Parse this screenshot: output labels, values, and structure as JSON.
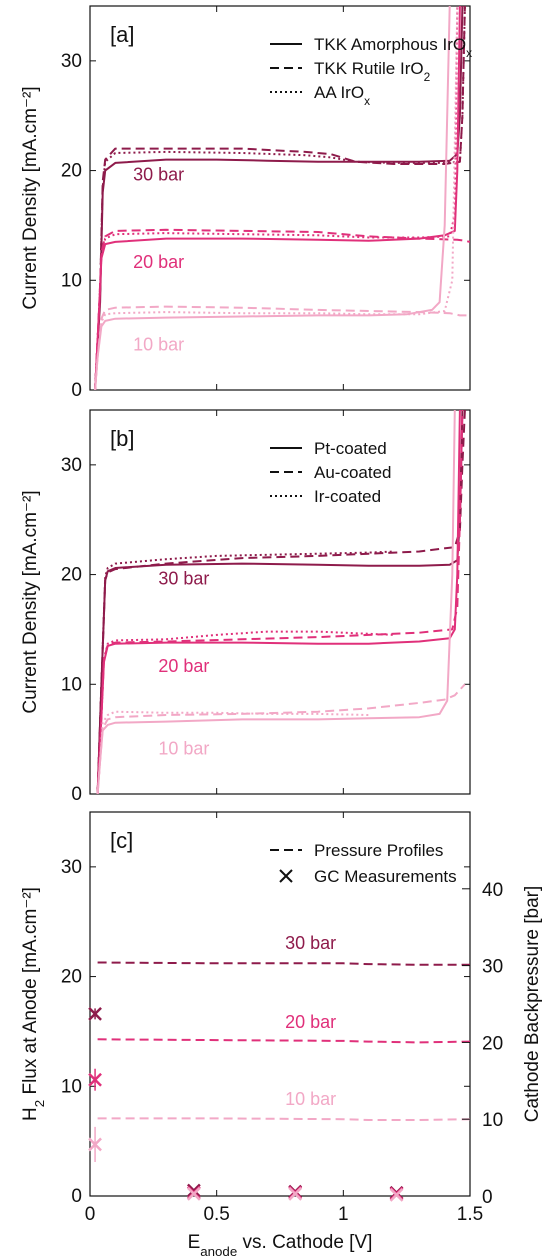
{
  "colors": {
    "p30": "#8e1b4b",
    "p20": "#e0307a",
    "p10": "#f2a8c6",
    "axis": "#111111"
  },
  "chart_data": [
    {
      "type": "line",
      "panel_label": "[a]",
      "ylabel": "Current Density [mA.cm⁻²]",
      "xlim": [
        0,
        1.5
      ],
      "ylim": [
        0,
        35
      ],
      "yticks": [
        "0",
        "10",
        "20",
        "30"
      ],
      "legend_placement": "top-right",
      "legend": [
        {
          "style": "solid",
          "base": "TKK Amorphous IrO",
          "sub": "x"
        },
        {
          "style": "dashed",
          "base": "TKK Rutile IrO",
          "sub": "2"
        },
        {
          "style": "dotted",
          "base": "AA IrO",
          "sub": "x"
        }
      ],
      "pressure_labels": [
        {
          "text": "30 bar",
          "color": "p30",
          "x": 0.17,
          "y": 19.1
        },
        {
          "text": "20 bar",
          "color": "p20",
          "x": 0.17,
          "y": 11.1
        },
        {
          "text": "10 bar",
          "color": "p10",
          "x": 0.17,
          "y": 3.6
        }
      ],
      "series": [
        {
          "color": "p30",
          "style": "solid",
          "x": [
            0.02,
            0.04,
            0.05,
            0.06,
            0.1,
            0.3,
            0.5,
            0.7,
            0.9,
            1.1,
            1.3,
            1.42,
            1.45,
            1.46,
            1.47
          ],
          "y": [
            0,
            8,
            18,
            20,
            20.7,
            21,
            21,
            20.9,
            20.8,
            20.8,
            20.8,
            20.9,
            21.5,
            25,
            35
          ]
        },
        {
          "color": "p30",
          "style": "dashed",
          "x": [
            0.02,
            0.04,
            0.05,
            0.06,
            0.1,
            0.3,
            0.6,
            0.85,
            0.95,
            1.05,
            1.2,
            1.4,
            1.46,
            1.47,
            1.48
          ],
          "y": [
            0,
            9,
            19,
            21,
            22,
            22,
            22,
            21.7,
            21.5,
            20.8,
            20.6,
            20.6,
            20.8,
            25,
            35
          ]
        },
        {
          "color": "p30",
          "style": "dotted",
          "x": [
            0.02,
            0.04,
            0.05,
            0.06,
            0.1,
            0.3,
            0.6,
            0.85,
            0.95,
            1.05,
            1.2,
            1.4,
            1.46,
            1.47,
            1.48
          ],
          "y": [
            0,
            9,
            18.5,
            20.8,
            21.6,
            21.7,
            21.6,
            21.4,
            21.2,
            20.8,
            20.7,
            20.7,
            20.8,
            25,
            35
          ]
        },
        {
          "color": "p20",
          "style": "solid",
          "x": [
            0.02,
            0.035,
            0.045,
            0.06,
            0.1,
            0.3,
            0.6,
            0.9,
            1.1,
            1.3,
            1.4,
            1.44,
            1.45,
            1.46
          ],
          "y": [
            0,
            7,
            12,
            13.3,
            13.5,
            13.8,
            13.8,
            13.7,
            13.6,
            13.8,
            14.1,
            14.5,
            20,
            35
          ]
        },
        {
          "color": "p20",
          "style": "dashed",
          "x": [
            0.02,
            0.035,
            0.045,
            0.06,
            0.1,
            0.3,
            0.6,
            0.9,
            1.1,
            1.3,
            1.45,
            1.48,
            1.5
          ],
          "y": [
            0,
            7,
            12.5,
            14,
            14.5,
            14.6,
            14.5,
            14.4,
            14,
            13.8,
            13.7,
            13.6,
            13.5
          ]
        },
        {
          "color": "p20",
          "style": "dotted",
          "x": [
            0.02,
            0.035,
            0.045,
            0.06,
            0.1,
            0.3,
            0.6,
            0.9,
            1.1,
            1.3,
            1.42,
            1.44,
            1.45
          ],
          "y": [
            0,
            7,
            12.3,
            13.8,
            14.2,
            14.3,
            14.2,
            14.1,
            13.9,
            13.9,
            14,
            16,
            35
          ]
        },
        {
          "color": "p10",
          "style": "solid",
          "x": [
            0.02,
            0.03,
            0.045,
            0.06,
            0.1,
            0.3,
            0.6,
            0.9,
            1.1,
            1.25,
            1.35,
            1.38,
            1.4,
            1.42
          ],
          "y": [
            0,
            3,
            5.8,
            6.3,
            6.5,
            6.6,
            6.7,
            6.8,
            6.8,
            6.9,
            7.3,
            8,
            15,
            35
          ]
        },
        {
          "color": "p10",
          "style": "dashed",
          "x": [
            0.02,
            0.03,
            0.045,
            0.06,
            0.1,
            0.3,
            0.6,
            0.9,
            1.1,
            1.3,
            1.42,
            1.46,
            1.5
          ],
          "y": [
            0,
            3,
            6.5,
            7.3,
            7.5,
            7.6,
            7.5,
            7.3,
            7.2,
            7.1,
            7,
            6.8,
            6.8
          ]
        },
        {
          "color": "p10",
          "style": "dotted",
          "x": [
            0.02,
            0.03,
            0.045,
            0.06,
            0.1,
            0.3,
            0.6,
            0.9,
            1.1,
            1.3,
            1.4,
            1.43,
            1.45
          ],
          "y": [
            0,
            3,
            6.2,
            6.9,
            7,
            7.1,
            7,
            7,
            6.9,
            6.9,
            7.2,
            10,
            35
          ]
        }
      ]
    },
    {
      "type": "line",
      "panel_label": "[b]",
      "ylabel": "Current Density [mA.cm⁻²]",
      "xlim": [
        0,
        1.5
      ],
      "ylim": [
        0,
        35
      ],
      "yticks": [
        "0",
        "10",
        "20",
        "30"
      ],
      "legend_placement": "top-right",
      "legend": [
        {
          "style": "solid",
          "base": "Pt-coated",
          "sub": ""
        },
        {
          "style": "dashed",
          "base": "Au-coated",
          "sub": ""
        },
        {
          "style": "dotted",
          "base": "Ir-coated",
          "sub": ""
        }
      ],
      "pressure_labels": [
        {
          "text": "30 bar",
          "color": "p30",
          "x": 0.27,
          "y": 19.1
        },
        {
          "text": "20 bar",
          "color": "p20",
          "x": 0.27,
          "y": 11.1
        },
        {
          "text": "10 bar",
          "color": "p10",
          "x": 0.27,
          "y": 3.6
        }
      ],
      "series": [
        {
          "color": "p30",
          "style": "solid",
          "x": [
            0.03,
            0.045,
            0.06,
            0.07,
            0.1,
            0.3,
            0.6,
            0.9,
            1.1,
            1.3,
            1.42,
            1.45,
            1.46,
            1.47
          ],
          "y": [
            0,
            10,
            19.5,
            20.3,
            20.6,
            20.9,
            21,
            20.9,
            20.8,
            20.8,
            20.9,
            21.3,
            25,
            35
          ]
        },
        {
          "color": "p30",
          "style": "dashed",
          "x": [
            0.03,
            0.045,
            0.06,
            0.07,
            0.1,
            0.3,
            0.6,
            0.9,
            1.1,
            1.3,
            1.44,
            1.46,
            1.47,
            1.48
          ],
          "y": [
            0,
            10,
            19.5,
            20.2,
            20.5,
            21,
            21.5,
            21.7,
            21.9,
            22.1,
            22.5,
            24,
            30,
            35
          ]
        },
        {
          "color": "p30",
          "style": "dotted",
          "x": [
            0.03,
            0.045,
            0.06,
            0.07,
            0.1,
            0.3,
            0.5,
            0.7,
            0.9,
            1.1,
            1.2
          ],
          "y": [
            0,
            10,
            19.8,
            20.6,
            21,
            21.4,
            21.7,
            21.8,
            21.9,
            22,
            22.1
          ]
        },
        {
          "color": "p20",
          "style": "solid",
          "x": [
            0.03,
            0.045,
            0.055,
            0.07,
            0.1,
            0.3,
            0.6,
            0.9,
            1.1,
            1.3,
            1.42,
            1.44,
            1.45,
            1.46
          ],
          "y": [
            0,
            7,
            12,
            13.5,
            13.7,
            13.8,
            13.8,
            13.7,
            13.7,
            13.9,
            14.2,
            15,
            20,
            35
          ]
        },
        {
          "color": "p20",
          "style": "dashed",
          "x": [
            0.03,
            0.045,
            0.055,
            0.07,
            0.1,
            0.3,
            0.6,
            0.9,
            1.1,
            1.3,
            1.43,
            1.45,
            1.46,
            1.47
          ],
          "y": [
            0,
            7,
            12.2,
            13.6,
            13.8,
            13.9,
            14.1,
            14.3,
            14.5,
            14.7,
            15,
            17,
            25,
            35
          ]
        },
        {
          "color": "p20",
          "style": "dotted",
          "x": [
            0.03,
            0.045,
            0.055,
            0.07,
            0.1,
            0.3,
            0.5,
            0.7,
            0.9,
            1.1,
            1.2
          ],
          "y": [
            0,
            7,
            12.3,
            13.7,
            14,
            14.1,
            14.5,
            14.8,
            14.8,
            14.6,
            14.5
          ]
        },
        {
          "color": "p10",
          "style": "solid",
          "x": [
            0.03,
            0.04,
            0.05,
            0.07,
            0.1,
            0.3,
            0.6,
            0.9,
            1.1,
            1.3,
            1.38,
            1.41,
            1.43,
            1.44
          ],
          "y": [
            0,
            3,
            5.8,
            6.3,
            6.5,
            6.6,
            6.8,
            6.8,
            6.9,
            7,
            7.3,
            8.5,
            20,
            35
          ]
        },
        {
          "color": "p10",
          "style": "dashed",
          "x": [
            0.03,
            0.04,
            0.05,
            0.07,
            0.1,
            0.3,
            0.6,
            0.9,
            1.1,
            1.3,
            1.4,
            1.44,
            1.48
          ],
          "y": [
            0,
            3,
            6,
            6.8,
            7,
            7.2,
            7.3,
            7.5,
            7.8,
            8.3,
            8.6,
            9,
            10
          ]
        },
        {
          "color": "p10",
          "style": "dotted",
          "x": [
            0.03,
            0.04,
            0.05,
            0.07,
            0.1,
            0.3,
            0.5,
            0.7,
            0.9,
            1.1
          ],
          "y": [
            0,
            3,
            6.5,
            7.2,
            7.5,
            7.4,
            7.4,
            7.3,
            7.3,
            7.2
          ]
        }
      ]
    },
    {
      "type": "line",
      "panel_label": "[c]",
      "ylabel_base": "H",
      "ylabel_sub": "2",
      "ylabel_rest": " Flux at Anode [mA.cm⁻²]",
      "y2label": "Cathode Backpressure [bar]",
      "xlabel_base": "E",
      "xlabel_sub": "anode",
      "xlabel_rest": " vs. Cathode [V]",
      "xlim": [
        0,
        1.5
      ],
      "ylim": [
        0,
        35
      ],
      "xticks": [
        "0",
        "0.5",
        "1",
        "1.5"
      ],
      "yticks": [
        "0",
        "10",
        "20",
        "30"
      ],
      "y2lim": [
        0,
        50
      ],
      "y2ticks": [
        "0",
        "10",
        "20",
        "30",
        "40"
      ],
      "legend_placement": "top-right",
      "legend": [
        {
          "style": "dashed",
          "base": "Pressure Profiles",
          "sub": ""
        },
        {
          "style": "marker",
          "base": "GC Measurements",
          "sub": ""
        }
      ],
      "pressure_labels": [
        {
          "text": "30 bar",
          "color": "p30",
          "x": 0.77,
          "y": 22.5
        },
        {
          "text": "20 bar",
          "color": "p20",
          "x": 0.77,
          "y": 15.3
        },
        {
          "text": "10 bar",
          "color": "p10",
          "x": 0.77,
          "y": 8.3
        }
      ],
      "series": [
        {
          "color": "p30",
          "style": "dashed",
          "x": [
            0.03,
            0.5,
            1.0,
            1.1,
            1.3,
            1.5
          ],
          "y2": [
            30.4,
            30.3,
            30.3,
            30.2,
            30.1,
            30.1
          ]
        },
        {
          "color": "p20",
          "style": "dashed",
          "x": [
            0.03,
            0.5,
            1.0,
            1.1,
            1.3,
            1.5
          ],
          "y2": [
            20.4,
            20.3,
            20.2,
            20.1,
            20.0,
            20.1
          ]
        },
        {
          "color": "p10",
          "style": "dashed",
          "x": [
            0.03,
            0.5,
            1.0,
            1.1,
            1.3,
            1.5
          ],
          "y2": [
            10.1,
            10.1,
            10.0,
            9.9,
            9.9,
            10.0
          ]
        }
      ],
      "gc_points": [
        {
          "color": "p30",
          "x": 0.02,
          "y": 16.6,
          "err": 0.5
        },
        {
          "color": "p20",
          "x": 0.02,
          "y": 10.6,
          "err": 1.0
        },
        {
          "color": "p10",
          "x": 0.02,
          "y": 4.7,
          "err": 1.6
        },
        {
          "color": "p30",
          "x": 0.41,
          "y": 0.5,
          "err": 0
        },
        {
          "color": "p20",
          "x": 0.41,
          "y": 0.3,
          "err": 0
        },
        {
          "color": "p10",
          "x": 0.41,
          "y": 0.2,
          "err": 0
        },
        {
          "color": "p30",
          "x": 0.81,
          "y": 0.4,
          "err": 0
        },
        {
          "color": "p20",
          "x": 0.81,
          "y": 0.3,
          "err": 0
        },
        {
          "color": "p10",
          "x": 0.81,
          "y": 0.2,
          "err": 0
        },
        {
          "color": "p30",
          "x": 1.21,
          "y": 0.3,
          "err": 0
        },
        {
          "color": "p20",
          "x": 1.21,
          "y": 0.2,
          "err": 0
        },
        {
          "color": "p10",
          "x": 1.21,
          "y": 0.1,
          "err": 0
        }
      ]
    }
  ]
}
